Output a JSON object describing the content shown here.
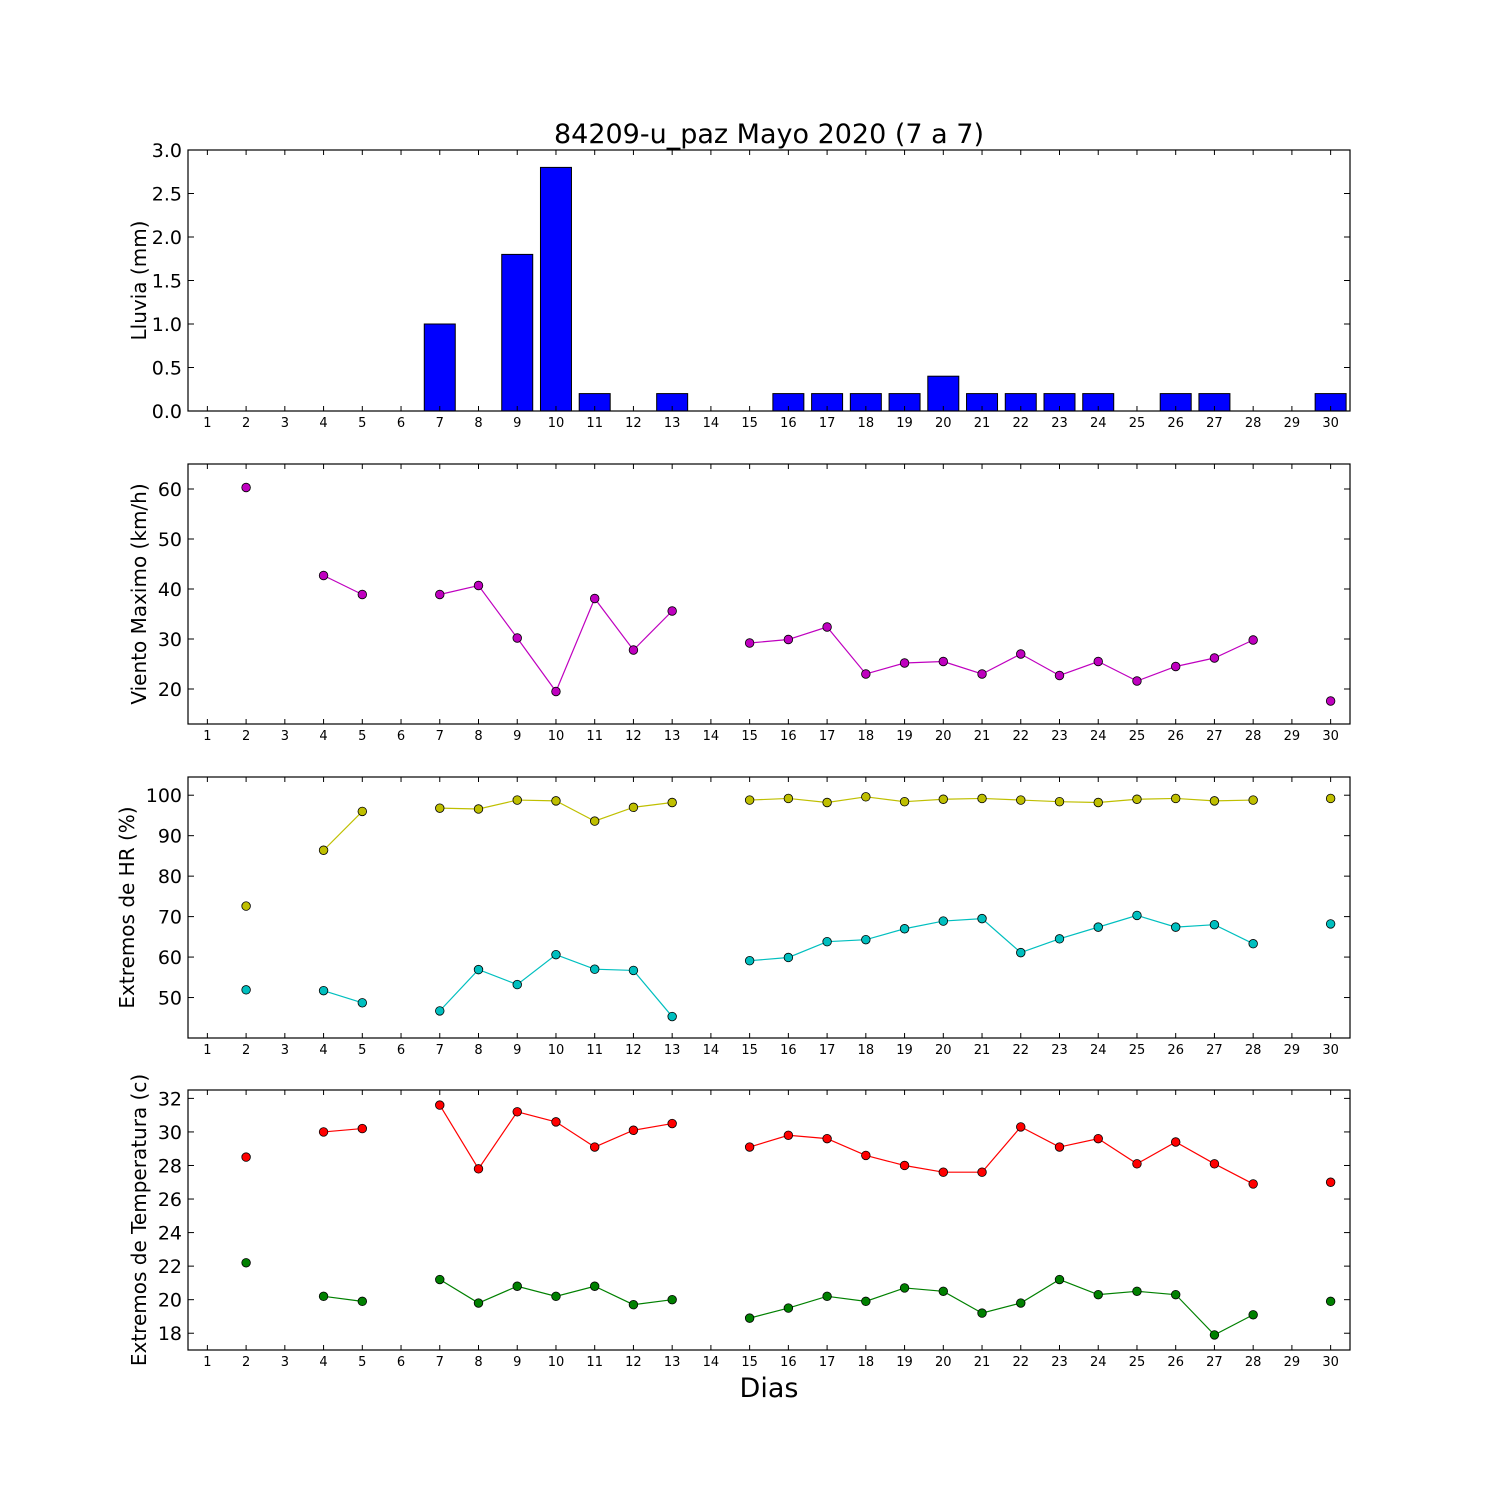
{
  "chart_data": [
    {
      "type": "bar",
      "title": "84209-u_paz Mayo 2020  (7 a 7)",
      "ylabel": "Lluvia (mm)",
      "xlabel": "",
      "x": [
        1,
        2,
        3,
        4,
        5,
        6,
        7,
        8,
        9,
        10,
        11,
        12,
        13,
        14,
        15,
        16,
        17,
        18,
        19,
        20,
        21,
        22,
        23,
        24,
        25,
        26,
        27,
        28,
        29,
        30
      ],
      "xlim": [
        0.5,
        30.5
      ],
      "ylim": [
        0,
        3.0
      ],
      "yticks": [
        "0.0",
        "0.5",
        "1.0",
        "1.5",
        "2.0",
        "2.5",
        "3.0"
      ],
      "color": "#0000ff",
      "series": [
        {
          "values": [
            0,
            0,
            0,
            0,
            0,
            0,
            1.0,
            0,
            1.8,
            2.8,
            0.2,
            0,
            0.2,
            0,
            0,
            0.2,
            0.2,
            0.2,
            0.2,
            0.4,
            0.2,
            0.2,
            0.2,
            0.2,
            0,
            0.2,
            0.2,
            0,
            0,
            0.2
          ]
        }
      ]
    },
    {
      "type": "line",
      "ylabel": "Viento Maximo (km/h)",
      "xlabel": "",
      "xlim": [
        0.5,
        30.5
      ],
      "ylim": [
        13,
        65
      ],
      "yticks": [
        "20",
        "30",
        "40",
        "50",
        "60"
      ],
      "series": [
        {
          "color": "#bf00bf",
          "points": [
            [
              2,
              60.3
            ],
            [
              4,
              42.7
            ],
            [
              5,
              38.9
            ],
            [
              7,
              38.9
            ],
            [
              8,
              40.7
            ],
            [
              9,
              30.2
            ],
            [
              10,
              19.5
            ],
            [
              11,
              38.1
            ],
            [
              12,
              27.8
            ],
            [
              13,
              35.6
            ],
            [
              15,
              29.2
            ],
            [
              16,
              29.9
            ],
            [
              17,
              32.4
            ],
            [
              18,
              23.0
            ],
            [
              19,
              25.2
            ],
            [
              20,
              25.5
            ],
            [
              21,
              23.0
            ],
            [
              22,
              27.0
            ],
            [
              23,
              22.7
            ],
            [
              24,
              25.5
            ],
            [
              25,
              21.6
            ],
            [
              26,
              24.5
            ],
            [
              27,
              26.2
            ],
            [
              28,
              29.8
            ],
            [
              30,
              17.6
            ]
          ]
        }
      ]
    },
    {
      "type": "line",
      "ylabel": "Extremos de HR (%)",
      "xlabel": "",
      "xlim": [
        0.5,
        30.5
      ],
      "ylim": [
        40,
        104.5
      ],
      "yticks": [
        "50",
        "60",
        "70",
        "80",
        "90",
        "100"
      ],
      "series": [
        {
          "color": "#bfbf00",
          "points": [
            [
              2,
              72.6
            ],
            [
              4,
              86.4
            ],
            [
              5,
              96.0
            ],
            [
              7,
              96.8
            ],
            [
              8,
              96.6
            ],
            [
              9,
              98.8
            ],
            [
              10,
              98.6
            ],
            [
              11,
              93.6
            ],
            [
              12,
              97.0
            ],
            [
              13,
              98.2
            ],
            [
              15,
              98.8
            ],
            [
              16,
              99.2
            ],
            [
              17,
              98.2
            ],
            [
              18,
              99.6
            ],
            [
              19,
              98.4
            ],
            [
              20,
              99.0
            ],
            [
              21,
              99.2
            ],
            [
              22,
              98.8
            ],
            [
              23,
              98.4
            ],
            [
              24,
              98.2
            ],
            [
              25,
              99.0
            ],
            [
              26,
              99.2
            ],
            [
              27,
              98.6
            ],
            [
              28,
              98.8
            ],
            [
              30,
              99.2
            ]
          ]
        },
        {
          "color": "#00bfbf",
          "points": [
            [
              2,
              51.9
            ],
            [
              4,
              51.7
            ],
            [
              5,
              48.7
            ],
            [
              7,
              46.7
            ],
            [
              8,
              56.9
            ],
            [
              9,
              53.2
            ],
            [
              10,
              60.6
            ],
            [
              11,
              57.0
            ],
            [
              12,
              56.7
            ],
            [
              13,
              45.3
            ],
            [
              15,
              59.1
            ],
            [
              16,
              59.9
            ],
            [
              17,
              63.8
            ],
            [
              18,
              64.3
            ],
            [
              19,
              67.0
            ],
            [
              20,
              68.9
            ],
            [
              21,
              69.5
            ],
            [
              22,
              61.1
            ],
            [
              23,
              64.5
            ],
            [
              24,
              67.4
            ],
            [
              25,
              70.3
            ],
            [
              26,
              67.4
            ],
            [
              27,
              68.0
            ],
            [
              28,
              63.3
            ],
            [
              30,
              68.2
            ]
          ]
        }
      ]
    },
    {
      "type": "line",
      "ylabel": "Extremos de Temperatura (c)",
      "xlabel": "Dias",
      "xlim": [
        0.5,
        30.5
      ],
      "ylim": [
        17,
        32.5
      ],
      "yticks": [
        "18",
        "20",
        "22",
        "24",
        "26",
        "28",
        "30",
        "32"
      ],
      "series": [
        {
          "color": "#ff0000",
          "points": [
            [
              2,
              28.5
            ],
            [
              4,
              30.0
            ],
            [
              5,
              30.2
            ],
            [
              7,
              31.6
            ],
            [
              8,
              27.8
            ],
            [
              9,
              31.2
            ],
            [
              10,
              30.6
            ],
            [
              11,
              29.1
            ],
            [
              12,
              30.1
            ],
            [
              13,
              30.5
            ],
            [
              15,
              29.1
            ],
            [
              16,
              29.8
            ],
            [
              17,
              29.6
            ],
            [
              18,
              28.6
            ],
            [
              19,
              28.0
            ],
            [
              20,
              27.6
            ],
            [
              21,
              27.6
            ],
            [
              22,
              30.3
            ],
            [
              23,
              29.1
            ],
            [
              24,
              29.6
            ],
            [
              25,
              28.1
            ],
            [
              26,
              29.4
            ],
            [
              27,
              28.1
            ],
            [
              28,
              26.9
            ],
            [
              30,
              27.0
            ]
          ]
        },
        {
          "color": "#008000",
          "points": [
            [
              2,
              22.2
            ],
            [
              4,
              20.2
            ],
            [
              5,
              19.9
            ],
            [
              7,
              21.2
            ],
            [
              8,
              19.8
            ],
            [
              9,
              20.8
            ],
            [
              10,
              20.2
            ],
            [
              11,
              20.8
            ],
            [
              12,
              19.7
            ],
            [
              13,
              20.0
            ],
            [
              15,
              18.9
            ],
            [
              16,
              19.5
            ],
            [
              17,
              20.2
            ],
            [
              18,
              19.9
            ],
            [
              19,
              20.7
            ],
            [
              20,
              20.5
            ],
            [
              21,
              19.2
            ],
            [
              22,
              19.8
            ],
            [
              23,
              21.2
            ],
            [
              24,
              20.3
            ],
            [
              25,
              20.5
            ],
            [
              26,
              20.3
            ],
            [
              27,
              17.9
            ],
            [
              28,
              19.1
            ],
            [
              30,
              19.9
            ]
          ]
        }
      ]
    }
  ],
  "x_tick_labels": [
    "1",
    "2",
    "3",
    "4",
    "5",
    "6",
    "7",
    "8",
    "9",
    "10",
    "11",
    "12",
    "13",
    "14",
    "15",
    "16",
    "17",
    "18",
    "19",
    "20",
    "21",
    "22",
    "23",
    "24",
    "25",
    "26",
    "27",
    "28",
    "29",
    "30"
  ]
}
